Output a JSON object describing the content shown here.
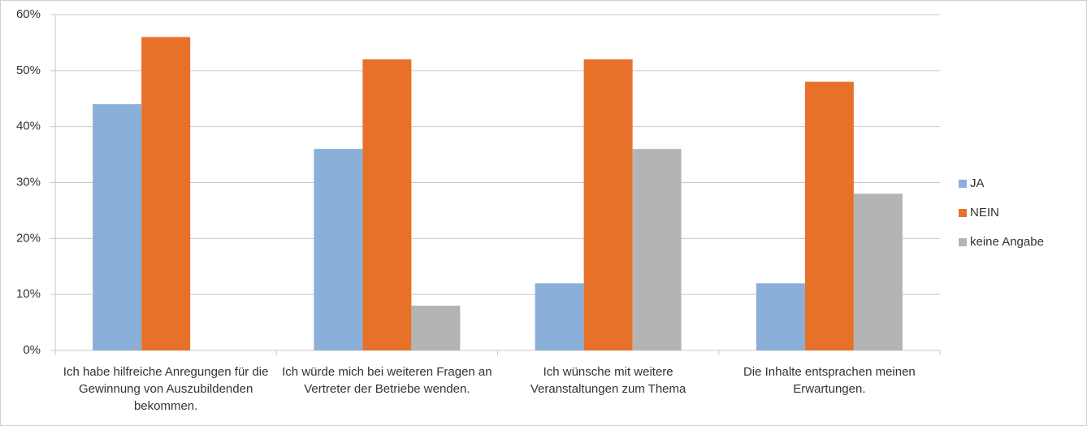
{
  "chart_data": {
    "type": "bar",
    "categories": [
      "Ich habe hilfreiche Anregungen für die Gewinnung von Auszubildenden bekommen.",
      "Ich würde mich bei weiteren Fragen an Vertreter der Betriebe wenden.",
      "Ich wünsche mit weitere Veranstaltungen zum Thema",
      "Die Inhalte entsprachen meinen Erwartungen."
    ],
    "series": [
      {
        "name": "JA",
        "color": "#8aafd8",
        "values": [
          44,
          36,
          12,
          12
        ]
      },
      {
        "name": "NEIN",
        "color": "#e8712a",
        "values": [
          56,
          52,
          52,
          48
        ]
      },
      {
        "name": "keine Angabe",
        "color": "#b4b4b4",
        "values": [
          0,
          8,
          36,
          28
        ]
      }
    ],
    "ylim": [
      0,
      60
    ],
    "yticks": [
      {
        "value": 0,
        "label": "0%"
      },
      {
        "value": 10,
        "label": "10%"
      },
      {
        "value": 20,
        "label": "20%"
      },
      {
        "value": 30,
        "label": "30%"
      },
      {
        "value": 40,
        "label": "40%"
      },
      {
        "value": 50,
        "label": "50%"
      },
      {
        "value": 60,
        "label": "60%"
      }
    ],
    "grid": true,
    "legend": "right"
  }
}
